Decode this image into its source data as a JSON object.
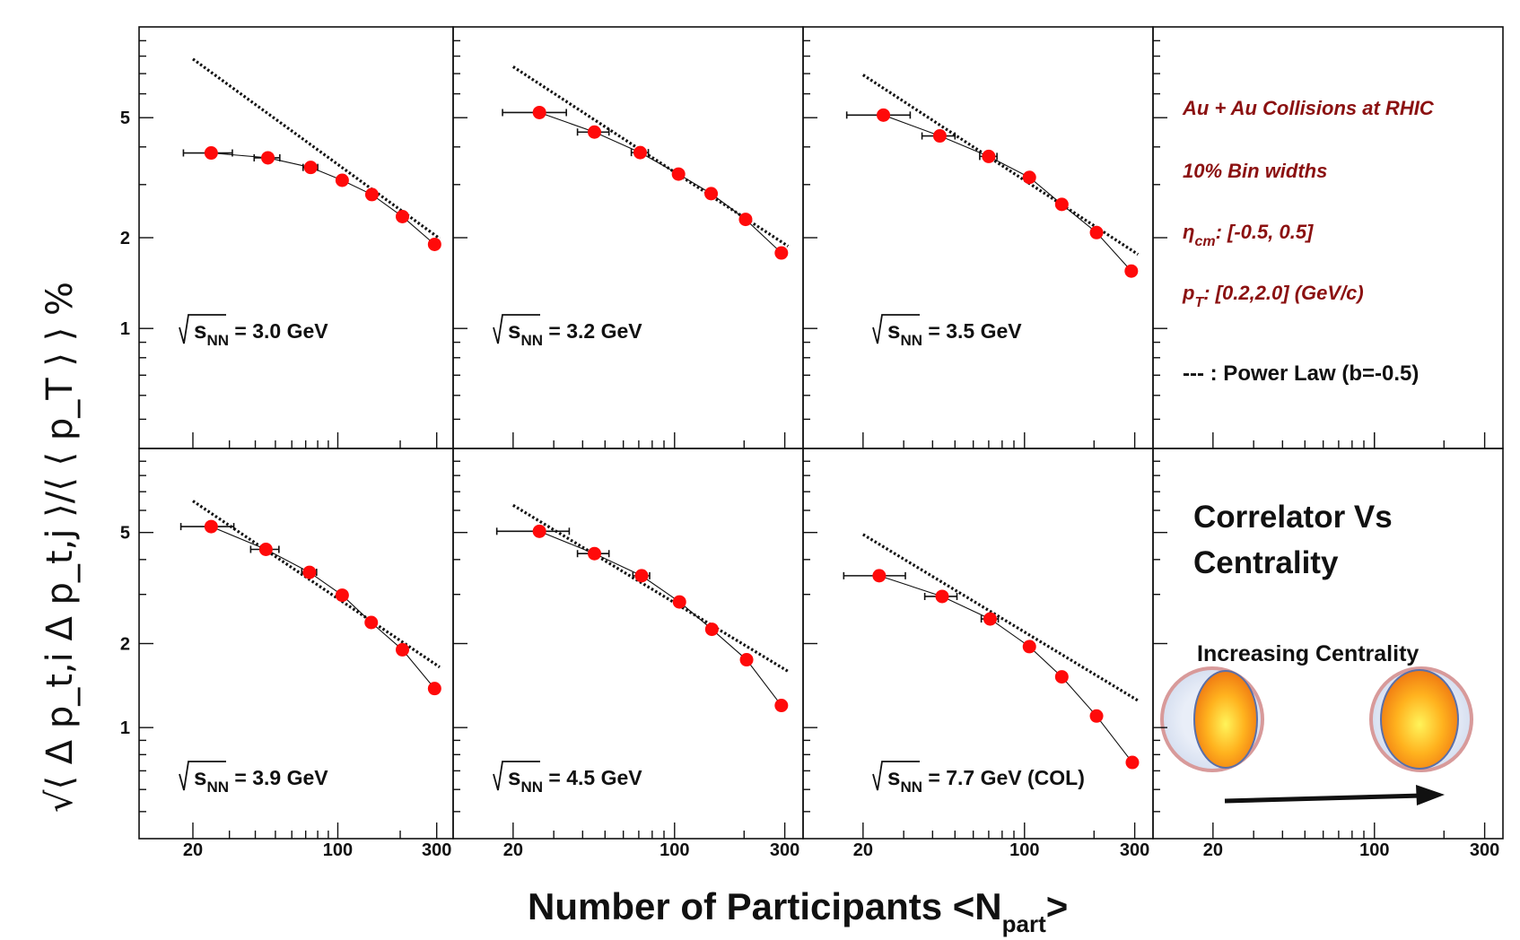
{
  "chart_data": {
    "type": "scatter",
    "layout": "2x4 grid of panels, log-log axes",
    "xlabel_main": "Number of Participants <N",
    "xlabel_sub": "part",
    "xlabel_end": ">",
    "ylabel": "√⟨ Δ p_t,i Δ p_t,j ⟩/⟨ ⟨ p_T ⟩ ⟩ %",
    "x_scale": "log",
    "y_scale": "log",
    "xlim": [
      11,
      360
    ],
    "ylim": [
      0.4,
      10
    ],
    "x_ticks": [
      "20",
      "100",
      "300"
    ],
    "x_tick_values": [
      20,
      100,
      300
    ],
    "y_ticks": [
      "1",
      "2",
      "5"
    ],
    "y_tick_values": [
      1,
      2,
      5
    ],
    "fit_label": "Power Law",
    "fit_exponent": -0.5,
    "panels": [
      {
        "label_root": "s",
        "label_sub": "NN",
        "label_rest": " = 3.0 GeV",
        "x": [
          24.5,
          46,
          74,
          105,
          146,
          205,
          293
        ],
        "y": [
          3.82,
          3.68,
          3.42,
          3.1,
          2.78,
          2.35,
          1.9
        ],
        "xerr": [
          6.5,
          6.5,
          6,
          0,
          0,
          0,
          0
        ],
        "fit_scale": 35
      },
      {
        "label_root": "s",
        "label_sub": "NN",
        "label_rest": " = 3.2 GeV",
        "x": [
          26,
          45,
          71,
          104,
          144,
          203,
          290
        ],
        "y": [
          5.2,
          4.48,
          3.83,
          3.25,
          2.8,
          2.3,
          1.78
        ],
        "xerr": [
          8,
          7,
          6,
          0,
          0,
          0,
          0
        ],
        "fit_scale": 33
      },
      {
        "label_root": "s",
        "label_sub": "NN",
        "label_rest": " = 3.5 GeV",
        "x": [
          24.5,
          43,
          70,
          105,
          145,
          205,
          290
        ],
        "y": [
          5.1,
          4.35,
          3.72,
          3.17,
          2.58,
          2.08,
          1.55
        ],
        "xerr": [
          7.5,
          7,
          6,
          3,
          0,
          0,
          0
        ],
        "fit_scale": 31
      },
      {
        "label_root": "s",
        "label_sub": "NN",
        "label_rest": " = 3.9 GeV",
        "x": [
          24.5,
          45,
          73,
          105,
          145,
          205,
          293
        ],
        "y": [
          5.25,
          4.35,
          3.6,
          2.98,
          2.38,
          1.9,
          1.38
        ],
        "xerr": [
          7,
          7,
          6,
          0,
          0,
          0,
          0
        ],
        "fit_scale": 29
      },
      {
        "label_root": "s",
        "label_sub": "NN",
        "label_rest": " = 4.5 GeV",
        "x": [
          26,
          45,
          72,
          105,
          145,
          205,
          290
        ],
        "y": [
          5.05,
          4.2,
          3.5,
          2.82,
          2.25,
          1.75,
          1.2
        ],
        "xerr": [
          9,
          7,
          6,
          0,
          0,
          0,
          0
        ],
        "fit_scale": 28
      },
      {
        "label_root": "s",
        "label_sub": "NN",
        "label_rest": " = 7.7 GeV (COL)",
        "x": [
          23.5,
          44,
          71,
          105,
          145,
          205,
          293
        ],
        "y": [
          3.5,
          2.95,
          2.45,
          1.95,
          1.52,
          1.1,
          0.75
        ],
        "xerr": [
          7,
          7,
          6,
          0,
          0,
          0,
          0
        ],
        "fit_scale": 22
      }
    ]
  },
  "legend": {
    "line1": "Au + Au Collisions at RHIC",
    "line2": "10% Bin widths",
    "line3_symbol": "η",
    "line3_sub": "cm",
    "line3_rest": ": [-0.5, 0.5]",
    "line4_symbol": "p",
    "line4_sub": "T",
    "line4_rest": ": [0.2,2.0] (GeV/c)",
    "line5": "--- : Power Law (b=-0.5)",
    "text_color": "#8b1111"
  },
  "cartoon": {
    "title_line1": "Correlator Vs",
    "title_line2": "Centrality",
    "caption": "Increasing Centrality"
  },
  "colors": {
    "marker": "#ff0a0a",
    "line": "#111111",
    "frame": "#111111"
  }
}
